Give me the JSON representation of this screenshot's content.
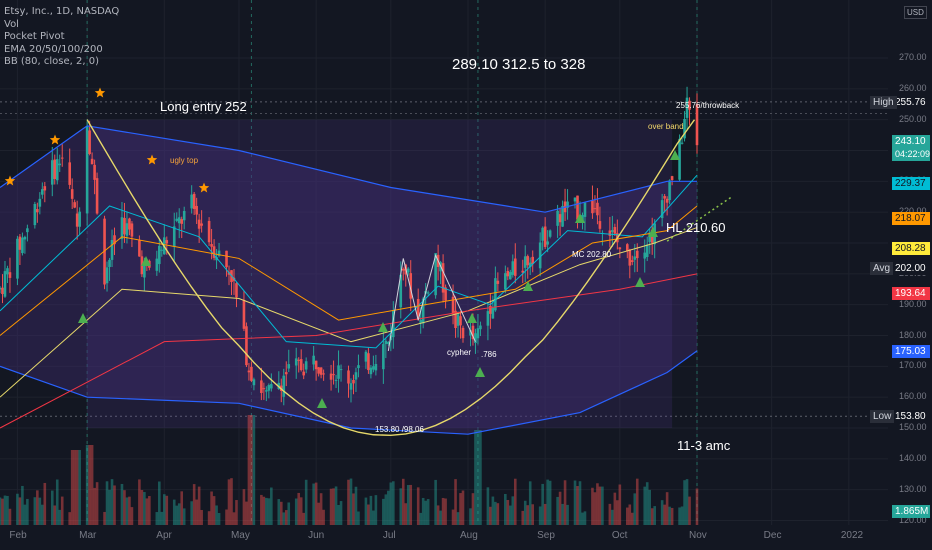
{
  "legend": {
    "symbol_line": "Etsy, Inc., 1D, NASDAQ",
    "indicators": [
      "Vol",
      "Pocket Pivot",
      "EMA 20/50/100/200",
      "BB (80, close, 2, 0)"
    ]
  },
  "currency_label": "USD",
  "annotations": {
    "targets": "289.10  312.5 to 328",
    "long_entry": "Long entry 252",
    "ugly_top": "ugly top",
    "throwback": "255.76/throwback",
    "over_band": "over band",
    "hl": "HL 210.60",
    "mc": "MC 202.80",
    "cypher": "cypher",
    "fib_786": ".786",
    "low_range": "153.80  /98.06",
    "earnings": "11-3  amc"
  },
  "price_axis": {
    "ticks": [
      "270.00",
      "260.00",
      "250.00",
      "230.00",
      "220.00",
      "200.00",
      "190.00",
      "180.00",
      "170.00",
      "160.00",
      "150.00",
      "140.00",
      "130.00",
      "120.00"
    ],
    "labels": [
      {
        "side": "High",
        "value": "255.76",
        "color": "#131722",
        "text_color": "#ffffff"
      },
      {
        "side": "",
        "value": "243.10",
        "color": "#26a69a",
        "text_color": "#ffffff",
        "sub": "04:22:09"
      },
      {
        "side": "",
        "value": "229.37",
        "color": "#00bcd4",
        "text_color": "#131722"
      },
      {
        "side": "",
        "value": "218.07",
        "color": "#ff9800",
        "text_color": "#131722"
      },
      {
        "side": "",
        "value": "208.28",
        "color": "#ffeb3b",
        "text_color": "#131722"
      },
      {
        "side": "Avg",
        "value": "202.00",
        "color": "#131722",
        "text_color": "#ffffff"
      },
      {
        "side": "",
        "value": "193.64",
        "color": "#f23645",
        "text_color": "#ffffff"
      },
      {
        "side": "",
        "value": "175.03",
        "color": "#2962ff",
        "text_color": "#ffffff"
      },
      {
        "side": "Low",
        "value": "153.80",
        "color": "#131722",
        "text_color": "#ffffff"
      },
      {
        "side": "",
        "value": "1.865M",
        "color": "#26a69a",
        "text_color": "#ffffff"
      }
    ]
  },
  "time_axis": [
    "Feb",
    "Mar",
    "Apr",
    "May",
    "Jun",
    "Jul",
    "Aug",
    "Sep",
    "Oct",
    "Nov",
    "Dec",
    "2022"
  ],
  "colors": {
    "background": "#131722",
    "up": "#26a69a",
    "down": "#ef5350",
    "bb_outer": "#2962ff",
    "bb_fill": "#3b2a6b",
    "cup": "#e6d86a",
    "ema20": "#00bcd4",
    "ema50": "#ff9800",
    "ema100": "#e6d86a",
    "ema200": "#f23645",
    "star": "#ff9800",
    "pivot": "#4caf50"
  },
  "chart_data": {
    "type": "candlestick",
    "title": "Etsy, Inc., 1D, NASDAQ",
    "ylim": [
      120,
      280
    ],
    "x_range": [
      "2021-01-25",
      "2022-01-20"
    ],
    "key_levels": {
      "high": 255.76,
      "last": 243.1,
      "avg": 202.0,
      "low": 153.8,
      "long_entry": 252,
      "higher_low": 210.6,
      "mc": 202.8
    },
    "price_path": [
      {
        "date": "2021-01-25",
        "close": 195
      },
      {
        "date": "2021-02-05",
        "close": 215
      },
      {
        "date": "2021-02-12",
        "close": 230
      },
      {
        "date": "2021-02-19",
        "close": 238
      },
      {
        "date": "2021-02-25",
        "close": 215
      },
      {
        "date": "2021-03-01",
        "close": 250
      },
      {
        "date": "2021-03-08",
        "close": 200
      },
      {
        "date": "2021-03-15",
        "close": 218
      },
      {
        "date": "2021-03-25",
        "close": 200
      },
      {
        "date": "2021-04-01",
        "close": 210
      },
      {
        "date": "2021-04-12",
        "close": 222
      },
      {
        "date": "2021-04-20",
        "close": 210
      },
      {
        "date": "2021-04-28",
        "close": 200
      },
      {
        "date": "2021-05-05",
        "close": 170
      },
      {
        "date": "2021-05-12",
        "close": 160
      },
      {
        "date": "2021-05-20",
        "close": 168
      },
      {
        "date": "2021-06-01",
        "close": 172
      },
      {
        "date": "2021-06-15",
        "close": 166
      },
      {
        "date": "2021-06-30",
        "close": 178
      },
      {
        "date": "2021-07-06",
        "close": 205
      },
      {
        "date": "2021-07-12",
        "close": 185
      },
      {
        "date": "2021-07-19",
        "close": 206
      },
      {
        "date": "2021-07-26",
        "close": 185
      },
      {
        "date": "2021-08-04",
        "close": 178
      },
      {
        "date": "2021-08-12",
        "close": 195
      },
      {
        "date": "2021-08-25",
        "close": 205
      },
      {
        "date": "2021-09-08",
        "close": 220
      },
      {
        "date": "2021-09-20",
        "close": 222
      },
      {
        "date": "2021-10-04",
        "close": 205
      },
      {
        "date": "2021-10-15",
        "close": 214
      },
      {
        "date": "2021-10-25",
        "close": 240
      },
      {
        "date": "2021-10-28",
        "close": 255
      },
      {
        "date": "2021-11-01",
        "close": 243.1
      }
    ],
    "series": [
      {
        "name": "BB (80, close, 2, 0)",
        "upper": [
          [
            "2021-01-25",
            228
          ],
          [
            "2021-03-01",
            248
          ],
          [
            "2021-05-01",
            240
          ],
          [
            "2021-07-01",
            228
          ],
          [
            "2021-09-01",
            220
          ],
          [
            "2021-10-20",
            230
          ],
          [
            "2021-11-01",
            230
          ]
        ],
        "lower": [
          [
            "2021-01-25",
            170
          ],
          [
            "2021-03-01",
            160
          ],
          [
            "2021-05-01",
            158
          ],
          [
            "2021-06-15",
            150
          ],
          [
            "2021-08-01",
            148
          ],
          [
            "2021-09-15",
            155
          ],
          [
            "2021-10-20",
            168
          ],
          [
            "2021-11-01",
            175
          ]
        ]
      }
    ]
  }
}
